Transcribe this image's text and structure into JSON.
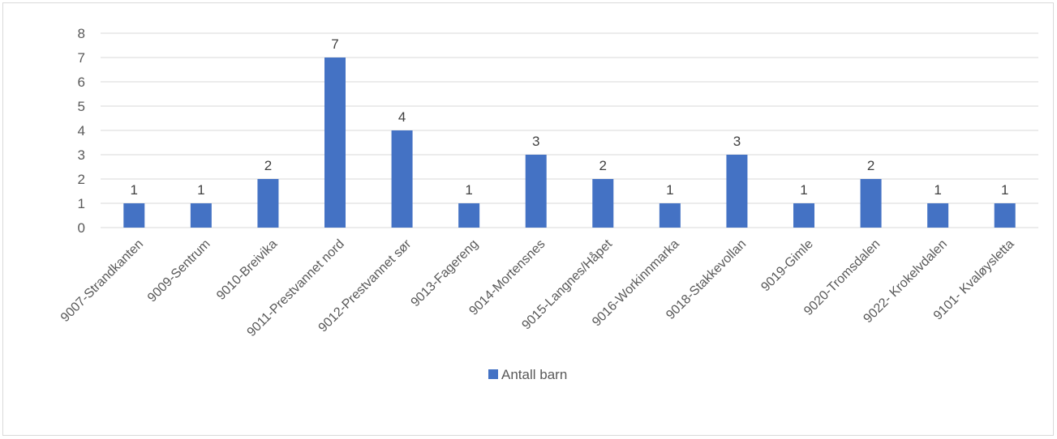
{
  "chart_data": {
    "type": "bar",
    "categories": [
      "9007-Strandkanten",
      "9009-Sentrum",
      "9010-Breivika",
      "9011-Prestvannet nord",
      "9012-Prestvannet sør",
      "9013-Fagereng",
      "9014-Mortensnes",
      "9015-Langnes/Håpet",
      "9016-Workinnmarka",
      "9018-Stakkevollan",
      "9019-Gimle",
      "9020-Tromsdalen",
      "9022- Krokelvdalen",
      "9101- Kvaløysletta"
    ],
    "series": [
      {
        "name": "Antall barn",
        "values": [
          1,
          1,
          2,
          7,
          4,
          1,
          3,
          2,
          1,
          3,
          1,
          2,
          1,
          1
        ]
      }
    ],
    "title": "",
    "xlabel": "",
    "ylabel": "",
    "ylim": [
      0,
      8
    ],
    "yticks": [
      0,
      1,
      2,
      3,
      4,
      5,
      6,
      7,
      8
    ],
    "grid": true,
    "data_labels": true,
    "legend_position": "bottom",
    "colors": {
      "bar": "#4472c4",
      "grid": "#d9d9d9",
      "axis": "#d9d9d9"
    }
  }
}
